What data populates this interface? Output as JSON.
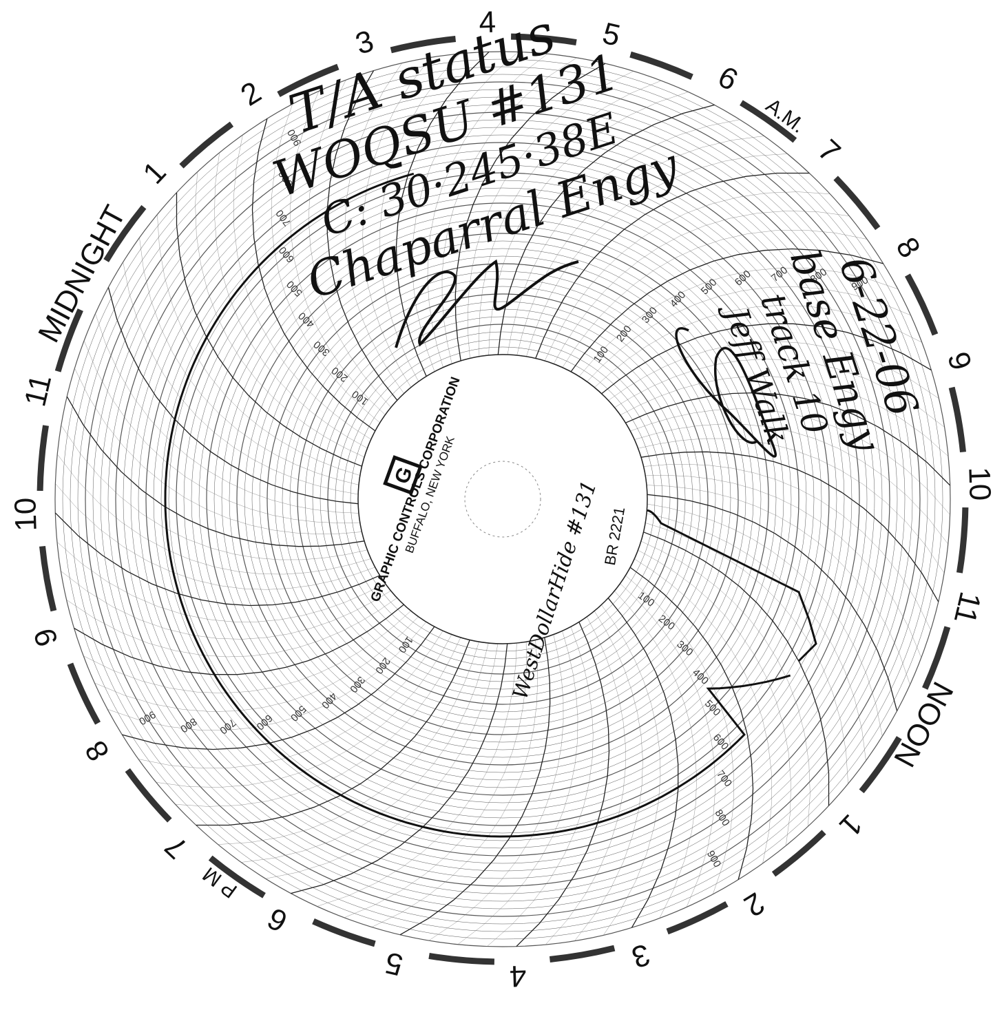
{
  "chart": {
    "brand": {
      "company": "GRAPHIC CONTROLS CORPORATION",
      "city": "BUFFALO, NEW YORK",
      "logo_letter": "G",
      "model": "BR 2221"
    },
    "hour_labels": [
      "MIDNIGHT",
      "1",
      "2",
      "3",
      "4",
      "5",
      "6",
      "7",
      "8",
      "9",
      "10",
      "11",
      "NOON",
      "1",
      "2",
      "3",
      "4",
      "5",
      "6",
      "7",
      "8",
      "9",
      "10",
      "11"
    ],
    "am_label": "A.M.",
    "pm_label": "P M",
    "scale_labels": [
      "100",
      "200",
      "300",
      "400",
      "500",
      "600",
      "700",
      "800",
      "900"
    ],
    "annotations": {
      "top_lines": [
        "T/A status",
        "WOQSU #131",
        "C: 30·245·38E",
        "Chaparral Engy"
      ],
      "right_lines": [
        "6-22-06",
        "base Engy",
        "track 10",
        "Jeff Walk"
      ],
      "hub_note": "WestDollarHide #131"
    },
    "colors": {
      "ink": "#111111",
      "grid": "#555555",
      "paper": "#ffffff"
    }
  }
}
